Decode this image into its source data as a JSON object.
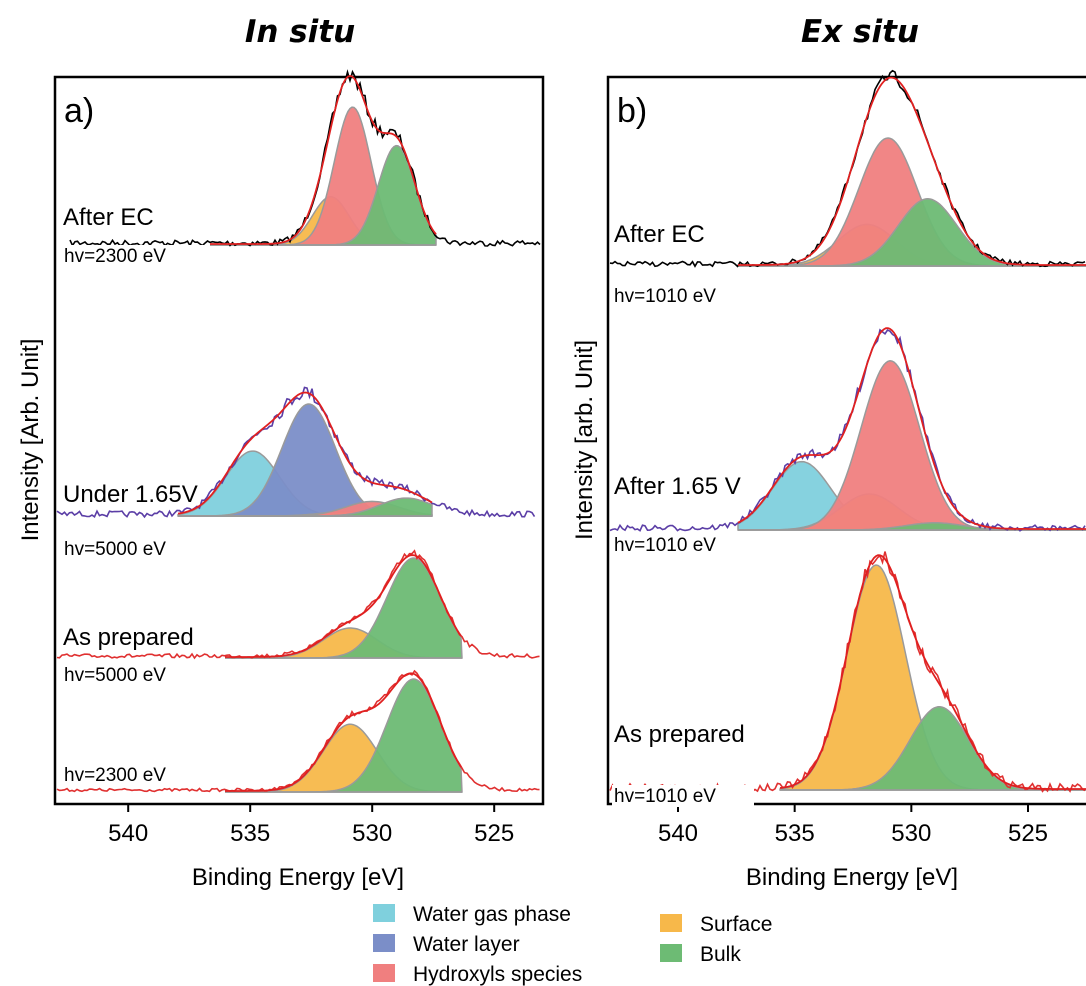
{
  "legend": [
    {
      "name": "Water gas phase",
      "color": "#7fd0dd"
    },
    {
      "name": "Water layer",
      "color": "#7b8ec8"
    },
    {
      "name": "Hydroxyls species",
      "color": "#f07f7f"
    },
    {
      "name": "Surface",
      "color": "#f7b84a"
    },
    {
      "name": "Bulk",
      "color": "#6dbb74"
    }
  ],
  "chart_data": [
    {
      "type": "area",
      "title": "In situ",
      "panel_label": "a)",
      "xlabel": "Binding Energy [eV]",
      "ylabel": "Intensity [Arb. Unit]",
      "xlim": [
        543,
        523
      ],
      "x_reversed": true,
      "xticks": [
        540,
        535,
        530,
        525
      ],
      "spectra": [
        {
          "label": "After EC",
          "hv": "hv=2300 eV",
          "raw_color": "#000000",
          "components": [
            {
              "name": "Surface",
              "center": 531.7,
              "height": 0.35
            },
            {
              "name": "Hydroxyls species",
              "center": 530.8,
              "height": 1.0
            },
            {
              "name": "Bulk",
              "center": 529.0,
              "height": 0.72
            }
          ]
        },
        {
          "label": "Under 1.65V",
          "hv": "hv=5000 eV",
          "raw_color": "#5b3ea6",
          "components": [
            {
              "name": "Water gas phase",
              "center": 534.9,
              "height": 0.58
            },
            {
              "name": "Water layer",
              "center": 532.6,
              "height": 1.0
            },
            {
              "name": "Surface",
              "center": 531.0,
              "height": 0.04
            },
            {
              "name": "Hydroxyls species",
              "center": 530.0,
              "height": 0.13
            },
            {
              "name": "Bulk",
              "center": 528.6,
              "height": 0.16
            }
          ]
        },
        {
          "label": "As prepared",
          "hv": "hv=5000 eV",
          "raw_color": "#e03030",
          "components": [
            {
              "name": "Surface",
              "center": 530.9,
              "height": 0.3
            },
            {
              "name": "Bulk",
              "center": 528.3,
              "height": 1.0
            }
          ]
        },
        {
          "label": "",
          "hv": "hv=2300 eV",
          "raw_color": "#e03030",
          "components": [
            {
              "name": "Surface",
              "center": 530.9,
              "height": 0.6
            },
            {
              "name": "Bulk",
              "center": 528.3,
              "height": 1.0
            }
          ]
        }
      ]
    },
    {
      "type": "area",
      "title": "Ex situ",
      "panel_label": "b)",
      "xlabel": "Binding Energy [eV]",
      "ylabel": "Intensity [arb. Unit]",
      "xlim": [
        543,
        522
      ],
      "x_reversed": true,
      "xticks": [
        540,
        535,
        530,
        525
      ],
      "spectra": [
        {
          "label": "After EC",
          "hv": "hv=1010 eV",
          "raw_color": "#000000",
          "components": [
            {
              "name": "Surface",
              "center": 531.9,
              "height": 0.26
            },
            {
              "name": "Hydroxyls species",
              "center": 531.0,
              "height": 0.8
            },
            {
              "name": "Bulk",
              "center": 529.3,
              "height": 0.42
            }
          ]
        },
        {
          "label": "After 1.65 V",
          "hv": "hv=1010 eV",
          "raw_color": "#5b3ea6",
          "components": [
            {
              "name": "Water gas phase",
              "center": 534.7,
              "height": 0.38
            },
            {
              "name": "Surface",
              "center": 531.8,
              "height": 0.2
            },
            {
              "name": "Hydroxyls species",
              "center": 530.9,
              "height": 0.94
            },
            {
              "name": "Bulk",
              "center": 529.0,
              "height": 0.04
            }
          ]
        },
        {
          "label": "As prepared",
          "hv": "hv=1010 eV",
          "raw_color": "#e03030",
          "components": [
            {
              "name": "Surface",
              "center": 531.5,
              "height": 1.0
            },
            {
              "name": "Bulk",
              "center": 528.8,
              "height": 0.37
            }
          ]
        }
      ]
    }
  ]
}
